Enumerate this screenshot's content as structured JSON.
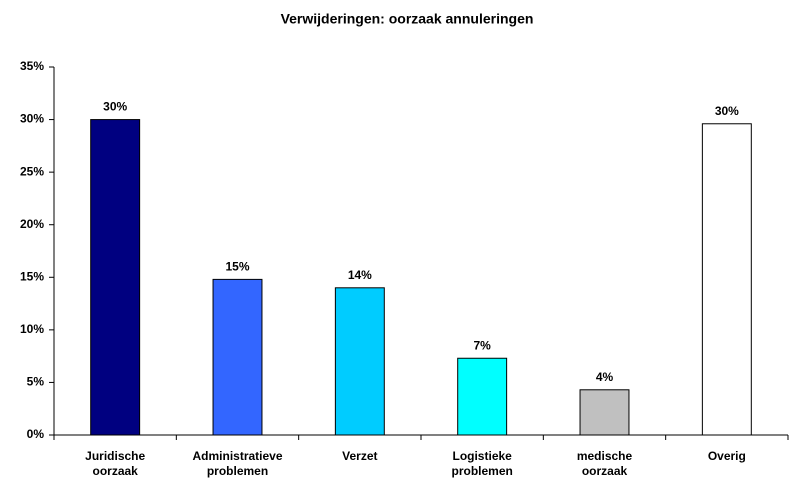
{
  "chart_data": {
    "type": "bar",
    "title": "Verwijderingen: oorzaak annuleringen",
    "categories": [
      "Juridische oorzaak",
      "Administratieve problemen",
      "Verzet",
      "Logistieke problemen",
      "medische oorzaak",
      "Overig"
    ],
    "values": [
      30,
      14.8,
      14,
      7.3,
      4.3,
      29.6
    ],
    "value_labels": [
      "30%",
      "15%",
      "14%",
      "7%",
      "4%",
      "30%"
    ],
    "colors": [
      "#000080",
      "#3366ff",
      "#00ccff",
      "#00ffff",
      "#c0c0c0",
      "#ffffff"
    ],
    "ylim": [
      0,
      35
    ],
    "yticks": [
      {
        "value": 0,
        "label": "0%"
      },
      {
        "value": 5,
        "label": "5%"
      },
      {
        "value": 10,
        "label": "10%"
      },
      {
        "value": 15,
        "label": "15%"
      },
      {
        "value": 20,
        "label": "20%"
      },
      {
        "value": 25,
        "label": "25%"
      },
      {
        "value": 30,
        "label": "30%"
      },
      {
        "value": 35,
        "label": "35%"
      }
    ],
    "grid": false
  }
}
